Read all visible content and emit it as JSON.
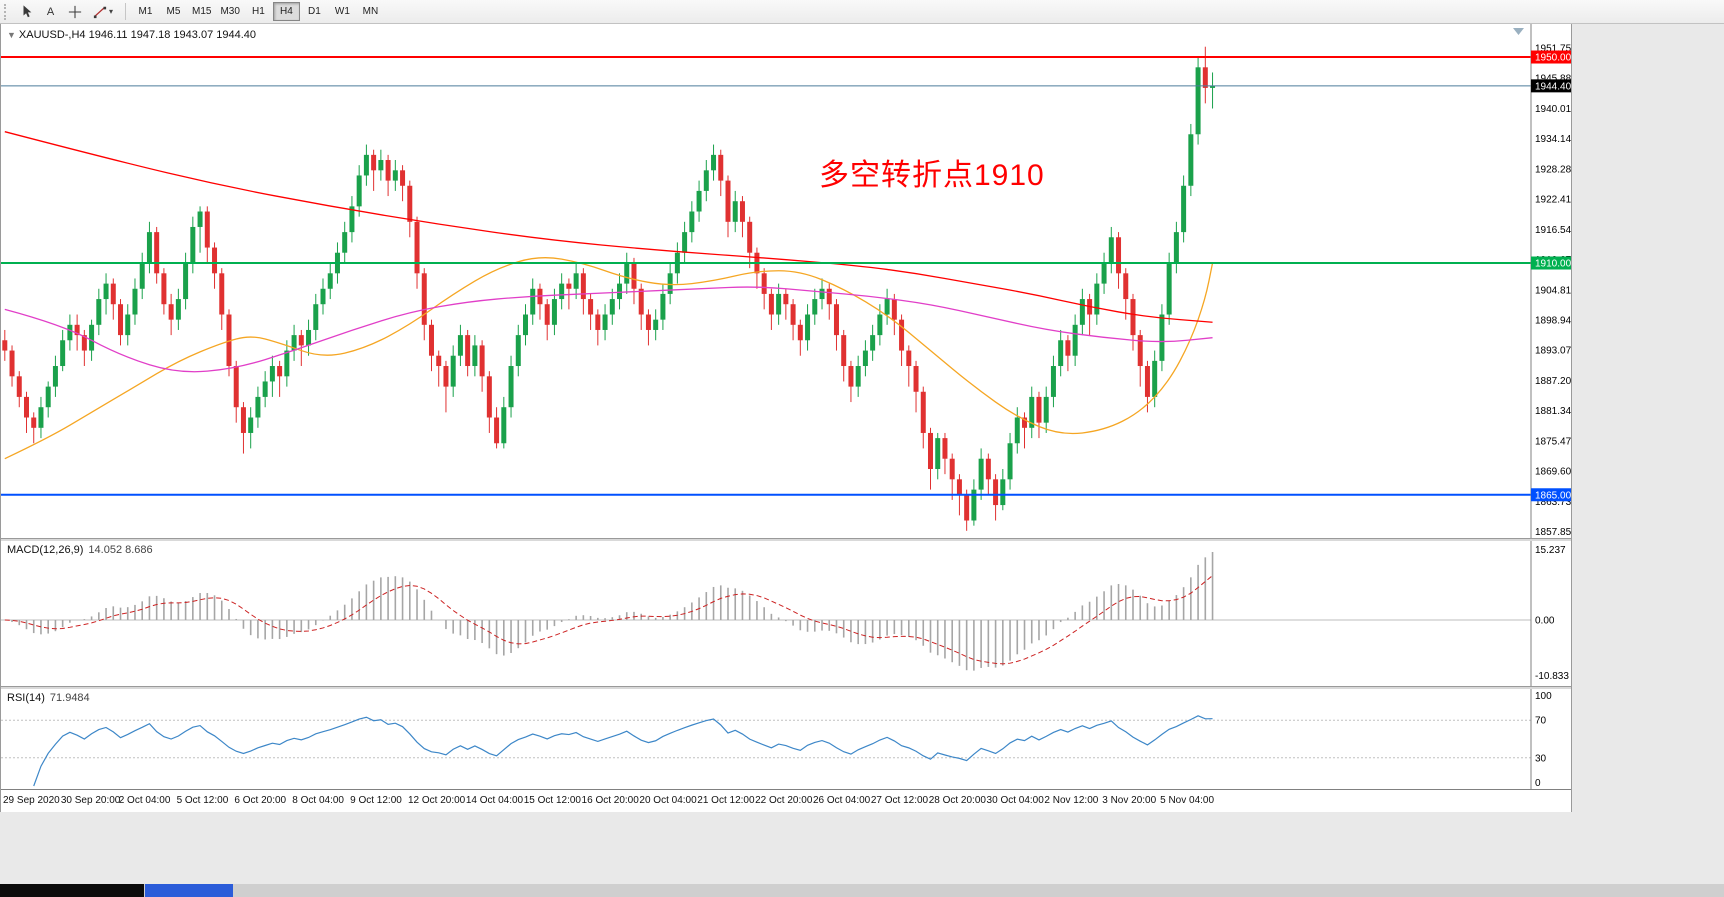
{
  "toolbar": {
    "tools": {
      "text_tool_label": "A"
    },
    "timeframes": [
      "M1",
      "M5",
      "M15",
      "M30",
      "H1",
      "H4",
      "D1",
      "W1",
      "MN"
    ],
    "active_timeframe": "H4"
  },
  "chart": {
    "title": "XAUUSD-,H4  1946.11 1947.18 1943.07 1944.40",
    "annotation": "多空转折点1910",
    "annotation_color": "#FF0000",
    "levels": [
      {
        "label": "1950.00",
        "price": 1950.0,
        "color": "#FF0000"
      },
      {
        "label": "1910.00",
        "price": 1910.0,
        "color": "#00B050"
      },
      {
        "label": "1865.00",
        "price": 1865.0,
        "color": "#0050FF"
      }
    ],
    "bid": {
      "label": "1944.40",
      "price": 1944.4,
      "badge": "#000000",
      "line": "#4C7C9B"
    },
    "y_ticks": [
      "1951.75",
      "1945.88",
      "1940.01",
      "1934.14",
      "1928.28",
      "1922.41",
      "1916.54",
      "1910.67",
      "1904.81",
      "1898.94",
      "1893.07",
      "1887.20",
      "1881.34",
      "1875.47",
      "1869.60",
      "1863.73",
      "1857.85"
    ]
  },
  "macd": {
    "label": "MACD(12,26,9)",
    "values": "14.052 8.686",
    "ticks": {
      "top": "15.237",
      "zero": "0.00",
      "bottom": "-10.833"
    }
  },
  "rsi": {
    "label": "RSI(14)",
    "value": "71.9484",
    "ticks": {
      "top": "100",
      "upper": "70",
      "lower": "30",
      "bottom": "0"
    }
  },
  "chart_data": {
    "type": "candlestick",
    "symbol": "XAUUSD",
    "timeframe": "H4",
    "ohlc_current": {
      "open": 1946.11,
      "high": 1947.18,
      "low": 1943.07,
      "close": 1944.4
    },
    "y_range": [
      1857.85,
      1951.75
    ],
    "x_labels": [
      "29 Sep 2020",
      "30 Sep 20:00",
      "2 Oct 04:00",
      "5 Oct 12:00",
      "6 Oct 20:00",
      "8 Oct 04:00",
      "9 Oct 12:00",
      "12 Oct 20:00",
      "14 Oct 04:00",
      "15 Oct 12:00",
      "16 Oct 20:00",
      "20 Oct 04:00",
      "21 Oct 12:00",
      "22 Oct 20:00",
      "26 Oct 04:00",
      "27 Oct 12:00",
      "28 Oct 20:00",
      "30 Oct 04:00",
      "2 Nov 12:00",
      "3 Nov 20:00",
      "5 Nov 04:00"
    ],
    "colors": {
      "bull": "#1AA14B",
      "bear": "#E03131",
      "macd_hist": "#A6A6A6",
      "macd_signal": "#CC2222",
      "rsi_line": "#3D87C8"
    },
    "candles": [
      [
        1895,
        1897,
        1891,
        1893
      ],
      [
        1893,
        1894,
        1886,
        1888
      ],
      [
        1888,
        1889,
        1882,
        1884
      ],
      [
        1884,
        1885,
        1877,
        1880
      ],
      [
        1880,
        1881,
        1875,
        1878
      ],
      [
        1878,
        1884,
        1876,
        1882
      ],
      [
        1882,
        1887,
        1880,
        1886
      ],
      [
        1886,
        1892,
        1884,
        1890
      ],
      [
        1890,
        1897,
        1889,
        1895
      ],
      [
        1895,
        1900,
        1893,
        1898
      ],
      [
        1898,
        1900,
        1893,
        1896
      ],
      [
        1896,
        1897,
        1890,
        1893
      ],
      [
        1893,
        1899,
        1891,
        1898
      ],
      [
        1898,
        1905,
        1896,
        1903
      ],
      [
        1903,
        1908,
        1900,
        1906
      ],
      [
        1906,
        1907,
        1899,
        1902
      ],
      [
        1902,
        1903,
        1894,
        1896
      ],
      [
        1896,
        1902,
        1894,
        1900
      ],
      [
        1900,
        1907,
        1898,
        1905
      ],
      [
        1905,
        1912,
        1903,
        1910
      ],
      [
        1910,
        1918,
        1908,
        1916
      ],
      [
        1916,
        1917,
        1906,
        1908
      ],
      [
        1908,
        1909,
        1900,
        1902
      ],
      [
        1902,
        1904,
        1896,
        1899
      ],
      [
        1899,
        1905,
        1897,
        1903
      ],
      [
        1903,
        1912,
        1901,
        1910
      ],
      [
        1910,
        1919,
        1908,
        1917
      ],
      [
        1917,
        1921,
        1912,
        1920
      ],
      [
        1920,
        1921,
        1910,
        1913
      ],
      [
        1913,
        1914,
        1905,
        1908
      ],
      [
        1908,
        1909,
        1897,
        1900
      ],
      [
        1900,
        1901,
        1888,
        1890
      ],
      [
        1890,
        1891,
        1879,
        1882
      ],
      [
        1882,
        1883,
        1873,
        1877
      ],
      [
        1877,
        1882,
        1874,
        1880
      ],
      [
        1880,
        1886,
        1878,
        1884
      ],
      [
        1884,
        1889,
        1882,
        1887
      ],
      [
        1887,
        1892,
        1884,
        1890
      ],
      [
        1890,
        1891,
        1884,
        1888
      ],
      [
        1888,
        1895,
        1886,
        1893
      ],
      [
        1893,
        1898,
        1891,
        1896
      ],
      [
        1896,
        1897,
        1890,
        1894
      ],
      [
        1894,
        1899,
        1892,
        1897
      ],
      [
        1897,
        1904,
        1895,
        1902
      ],
      [
        1902,
        1907,
        1900,
        1905
      ],
      [
        1905,
        1910,
        1903,
        1908
      ],
      [
        1908,
        1914,
        1906,
        1912
      ],
      [
        1912,
        1918,
        1910,
        1916
      ],
      [
        1916,
        1923,
        1914,
        1921
      ],
      [
        1921,
        1929,
        1919,
        1927
      ],
      [
        1927,
        1933,
        1925,
        1931
      ],
      [
        1931,
        1932,
        1924,
        1928
      ],
      [
        1928,
        1932,
        1926,
        1930
      ],
      [
        1930,
        1931,
        1923,
        1926
      ],
      [
        1926,
        1930,
        1924,
        1928
      ],
      [
        1928,
        1929,
        1922,
        1925
      ],
      [
        1925,
        1926,
        1915,
        1918
      ],
      [
        1918,
        1919,
        1905,
        1908
      ],
      [
        1908,
        1909,
        1895,
        1898
      ],
      [
        1898,
        1899,
        1889,
        1892
      ],
      [
        1892,
        1893,
        1886,
        1890
      ],
      [
        1890,
        1891,
        1881,
        1886
      ],
      [
        1886,
        1894,
        1884,
        1892
      ],
      [
        1892,
        1898,
        1890,
        1896
      ],
      [
        1896,
        1897,
        1888,
        1890
      ],
      [
        1890,
        1896,
        1888,
        1894
      ],
      [
        1894,
        1895,
        1885,
        1888
      ],
      [
        1888,
        1889,
        1877,
        1880
      ],
      [
        1880,
        1882,
        1874,
        1875
      ],
      [
        1875,
        1884,
        1874,
        1882
      ],
      [
        1882,
        1892,
        1880,
        1890
      ],
      [
        1890,
        1898,
        1888,
        1896
      ],
      [
        1896,
        1902,
        1894,
        1900
      ],
      [
        1900,
        1907,
        1898,
        1905
      ],
      [
        1905,
        1906,
        1899,
        1902
      ],
      [
        1902,
        1903,
        1895,
        1898
      ],
      [
        1898,
        1905,
        1896,
        1903
      ],
      [
        1903,
        1908,
        1901,
        1906
      ],
      [
        1906,
        1907,
        1901,
        1905
      ],
      [
        1905,
        1910,
        1903,
        1908
      ],
      [
        1908,
        1909,
        1900,
        1903
      ],
      [
        1903,
        1904,
        1897,
        1900
      ],
      [
        1900,
        1901,
        1894,
        1897
      ],
      [
        1897,
        1902,
        1895,
        1900
      ],
      [
        1900,
        1905,
        1898,
        1903
      ],
      [
        1903,
        1908,
        1901,
        1906
      ],
      [
        1906,
        1912,
        1904,
        1910
      ],
      [
        1910,
        1911,
        1902,
        1905
      ],
      [
        1905,
        1906,
        1897,
        1900
      ],
      [
        1900,
        1901,
        1894,
        1897
      ],
      [
        1897,
        1901,
        1895,
        1899
      ],
      [
        1899,
        1906,
        1897,
        1904
      ],
      [
        1904,
        1910,
        1902,
        1908
      ],
      [
        1908,
        1914,
        1906,
        1912
      ],
      [
        1912,
        1918,
        1910,
        1916
      ],
      [
        1916,
        1922,
        1914,
        1920
      ],
      [
        1920,
        1926,
        1918,
        1924
      ],
      [
        1924,
        1930,
        1922,
        1928
      ],
      [
        1928,
        1933,
        1926,
        1931
      ],
      [
        1931,
        1932,
        1923,
        1926
      ],
      [
        1926,
        1927,
        1915,
        1918
      ],
      [
        1918,
        1924,
        1916,
        1922
      ],
      [
        1922,
        1923,
        1915,
        1918
      ],
      [
        1918,
        1919,
        1909,
        1912
      ],
      [
        1912,
        1913,
        1905,
        1908
      ],
      [
        1908,
        1909,
        1901,
        1904
      ],
      [
        1904,
        1905,
        1897,
        1900
      ],
      [
        1900,
        1906,
        1898,
        1904
      ],
      [
        1904,
        1905,
        1899,
        1902
      ],
      [
        1902,
        1903,
        1895,
        1898
      ],
      [
        1898,
        1899,
        1892,
        1895
      ],
      [
        1895,
        1902,
        1893,
        1900
      ],
      [
        1900,
        1905,
        1898,
        1903
      ],
      [
        1903,
        1907,
        1901,
        1905
      ],
      [
        1905,
        1906,
        1899,
        1902
      ],
      [
        1902,
        1903,
        1893,
        1896
      ],
      [
        1896,
        1897,
        1887,
        1890
      ],
      [
        1890,
        1891,
        1883,
        1886
      ],
      [
        1886,
        1892,
        1884,
        1890
      ],
      [
        1890,
        1895,
        1888,
        1893
      ],
      [
        1893,
        1898,
        1891,
        1896
      ],
      [
        1896,
        1902,
        1894,
        1900
      ],
      [
        1900,
        1905,
        1898,
        1903
      ],
      [
        1903,
        1904,
        1896,
        1899
      ],
      [
        1899,
        1900,
        1890,
        1893
      ],
      [
        1893,
        1894,
        1886,
        1890
      ],
      [
        1890,
        1891,
        1881,
        1885
      ],
      [
        1885,
        1886,
        1874,
        1877
      ],
      [
        1877,
        1878,
        1866,
        1870
      ],
      [
        1870,
        1877,
        1868,
        1876
      ],
      [
        1876,
        1877,
        1869,
        1872
      ],
      [
        1872,
        1873,
        1864,
        1868
      ],
      [
        1868,
        1869,
        1861,
        1865
      ],
      [
        1865,
        1866,
        1858,
        1860
      ],
      [
        1860,
        1868,
        1859,
        1866
      ],
      [
        1866,
        1874,
        1864,
        1872
      ],
      [
        1872,
        1873,
        1865,
        1868
      ],
      [
        1868,
        1869,
        1860,
        1863
      ],
      [
        1863,
        1870,
        1862,
        1868
      ],
      [
        1868,
        1877,
        1866,
        1875
      ],
      [
        1875,
        1882,
        1873,
        1880
      ],
      [
        1880,
        1881,
        1874,
        1878
      ],
      [
        1878,
        1886,
        1876,
        1884
      ],
      [
        1884,
        1885,
        1876,
        1879
      ],
      [
        1879,
        1886,
        1877,
        1884
      ],
      [
        1884,
        1892,
        1882,
        1890
      ],
      [
        1890,
        1897,
        1888,
        1895
      ],
      [
        1895,
        1896,
        1889,
        1892
      ],
      [
        1892,
        1900,
        1890,
        1898
      ],
      [
        1898,
        1905,
        1896,
        1903
      ],
      [
        1903,
        1904,
        1896,
        1900
      ],
      [
        1900,
        1908,
        1898,
        1906
      ],
      [
        1906,
        1912,
        1904,
        1910
      ],
      [
        1910,
        1917,
        1908,
        1915
      ],
      [
        1915,
        1916,
        1905,
        1908
      ],
      [
        1908,
        1909,
        1899,
        1903
      ],
      [
        1903,
        1904,
        1893,
        1896
      ],
      [
        1896,
        1897,
        1886,
        1890
      ],
      [
        1890,
        1891,
        1881,
        1884
      ],
      [
        1884,
        1893,
        1882,
        1891
      ],
      [
        1891,
        1902,
        1889,
        1900
      ],
      [
        1900,
        1912,
        1898,
        1910
      ],
      [
        1910,
        1918,
        1908,
        1916
      ],
      [
        1916,
        1927,
        1914,
        1925
      ],
      [
        1925,
        1937,
        1923,
        1935
      ],
      [
        1935,
        1950,
        1933,
        1948
      ],
      [
        1948,
        1952,
        1941,
        1944
      ],
      [
        1944,
        1947,
        1940,
        1944.4
      ]
    ],
    "overlays": {
      "ma_red": {
        "color": "#FF0000",
        "points": [
          [
            0,
            1935.5
          ],
          [
            15,
            1930
          ],
          [
            30,
            1925
          ],
          [
            45,
            1921
          ],
          [
            60,
            1917.5
          ],
          [
            75,
            1914.5
          ],
          [
            90,
            1912.5
          ],
          [
            105,
            1911
          ],
          [
            118,
            1909.5
          ],
          [
            126,
            1908
          ],
          [
            134,
            1906
          ],
          [
            142,
            1904
          ],
          [
            150,
            1901.5
          ],
          [
            158,
            1899.5
          ],
          [
            167,
            1898.5
          ]
        ]
      },
      "ma_magenta": {
        "color": "#E13FC8",
        "points": [
          [
            0,
            1901
          ],
          [
            8,
            1898
          ],
          [
            16,
            1892
          ],
          [
            24,
            1888.5
          ],
          [
            32,
            1889.5
          ],
          [
            40,
            1893
          ],
          [
            48,
            1897
          ],
          [
            56,
            1900.5
          ],
          [
            64,
            1902.5
          ],
          [
            72,
            1903.5
          ],
          [
            80,
            1904
          ],
          [
            88,
            1904.5
          ],
          [
            96,
            1905
          ],
          [
            104,
            1905.5
          ],
          [
            112,
            1904.5
          ],
          [
            120,
            1903.5
          ],
          [
            128,
            1902
          ],
          [
            136,
            1899.5
          ],
          [
            144,
            1897
          ],
          [
            152,
            1895.5
          ],
          [
            160,
            1894.5
          ],
          [
            167,
            1895.5
          ]
        ]
      },
      "ma_orange": {
        "color": "#F5A623",
        "points": [
          [
            0,
            1872
          ],
          [
            6,
            1876
          ],
          [
            12,
            1881
          ],
          [
            18,
            1886
          ],
          [
            24,
            1891
          ],
          [
            30,
            1894.5
          ],
          [
            34,
            1896
          ],
          [
            38,
            1894.5
          ],
          [
            44,
            1891.5
          ],
          [
            50,
            1893.5
          ],
          [
            56,
            1898
          ],
          [
            62,
            1904
          ],
          [
            68,
            1909
          ],
          [
            74,
            1911.5
          ],
          [
            80,
            1910
          ],
          [
            86,
            1907
          ],
          [
            92,
            1905.5
          ],
          [
            98,
            1906.5
          ],
          [
            104,
            1908.5
          ],
          [
            110,
            1908.5
          ],
          [
            116,
            1905
          ],
          [
            122,
            1900
          ],
          [
            128,
            1893
          ],
          [
            134,
            1886
          ],
          [
            140,
            1880
          ],
          [
            146,
            1876.5
          ],
          [
            152,
            1877.5
          ],
          [
            157,
            1881
          ],
          [
            161,
            1887
          ],
          [
            164,
            1895
          ],
          [
            166,
            1903
          ],
          [
            167,
            1910
          ]
        ]
      }
    },
    "indicators": [
      {
        "type": "MACD",
        "params": [
          12,
          26,
          9
        ],
        "current": [
          14.052,
          8.686
        ],
        "range": [
          -10.833,
          15.237
        ]
      },
      {
        "type": "RSI",
        "params": [
          14
        ],
        "current": 71.9484,
        "levels": [
          30,
          70
        ],
        "range": [
          0,
          100
        ]
      }
    ]
  },
  "taskbar": {
    "blocks": [
      {
        "color": "#0B0B0B",
        "width": 144
      },
      {
        "color": "#2B5CD9",
        "width": 88
      }
    ]
  }
}
